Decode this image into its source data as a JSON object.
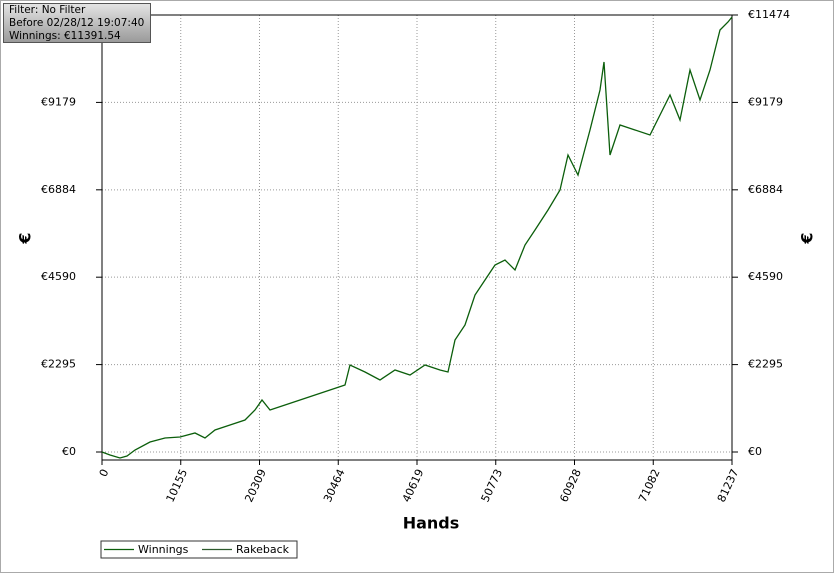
{
  "chart_data": {
    "type": "line",
    "info": [
      "Filter: No Filter",
      "Before 02/28/12 19:07:40",
      "Winnings: €11391.54"
    ],
    "xlabel": "Hands",
    "ylabel": "€",
    "x": [
      0,
      1032,
      2321,
      3224,
      4255,
      6190,
      8124,
      10058,
      11992,
      13282,
      14571,
      16506,
      18440,
      19730,
      20632,
      21664,
      23598,
      25532,
      27467,
      29401,
      31335,
      31980,
      33914,
      35848,
      37783,
      39717,
      41651,
      43585,
      44617,
      45520,
      46809,
      48099,
      49388,
      50677,
      51967,
      53256,
      54546,
      55835,
      57511,
      59059,
      60090,
      61380,
      62927,
      64217,
      64732,
      65506,
      66795,
      68730,
      70664,
      71953,
      73243,
      74532,
      75822,
      77111,
      78400,
      79690,
      80722,
      81237
    ],
    "series": [
      {
        "name": "Winnings",
        "color": "#0b5e0b",
        "values": [
          0,
          -79,
          -158,
          -105,
          52,
          263,
          368,
          394,
          499,
          368,
          578,
          709,
          840,
          1103,
          1365,
          1103,
          1234,
          1365,
          1497,
          1628,
          1759,
          2284,
          2100,
          1890,
          2153,
          2022,
          2284,
          2153,
          2100,
          2941,
          3334,
          4122,
          4516,
          4910,
          5041,
          4779,
          5435,
          5829,
          6354,
          6879,
          7798,
          7273,
          8455,
          9505,
          10240,
          7798,
          8586,
          8455,
          8324,
          8849,
          9374,
          8718,
          10031,
          9243,
          10031,
          11080,
          11290,
          11421
        ]
      },
      {
        "name": "Rakeback",
        "color": "#2d5a2d",
        "values": [
          null,
          null,
          null,
          null,
          null,
          null,
          null,
          null,
          null,
          null,
          null,
          null,
          null,
          null,
          null,
          null,
          null,
          null,
          null,
          null,
          null,
          null,
          null,
          null,
          null,
          null,
          null,
          null,
          null,
          null,
          null,
          null,
          null,
          null,
          null,
          null,
          null,
          null,
          null,
          null,
          null,
          null,
          null,
          null,
          null,
          null,
          null,
          null,
          null,
          null,
          null,
          null,
          null,
          null,
          null,
          null,
          null,
          null
        ]
      }
    ],
    "xlim": [
      0,
      81237
    ],
    "ylim": [
      -210,
      11474
    ],
    "xticks": [
      0,
      10155,
      20309,
      30464,
      40619,
      50773,
      60928,
      71082,
      81237
    ],
    "yticks": [
      {
        "value": 0,
        "label": "€0"
      },
      {
        "value": 2295,
        "label": "€2295"
      },
      {
        "value": 4590,
        "label": "€4590"
      },
      {
        "value": 6884,
        "label": "€6884"
      },
      {
        "value": 9179,
        "label": "€9179"
      },
      {
        "value": 11474,
        "label": "€11474"
      }
    ],
    "grid": true
  }
}
